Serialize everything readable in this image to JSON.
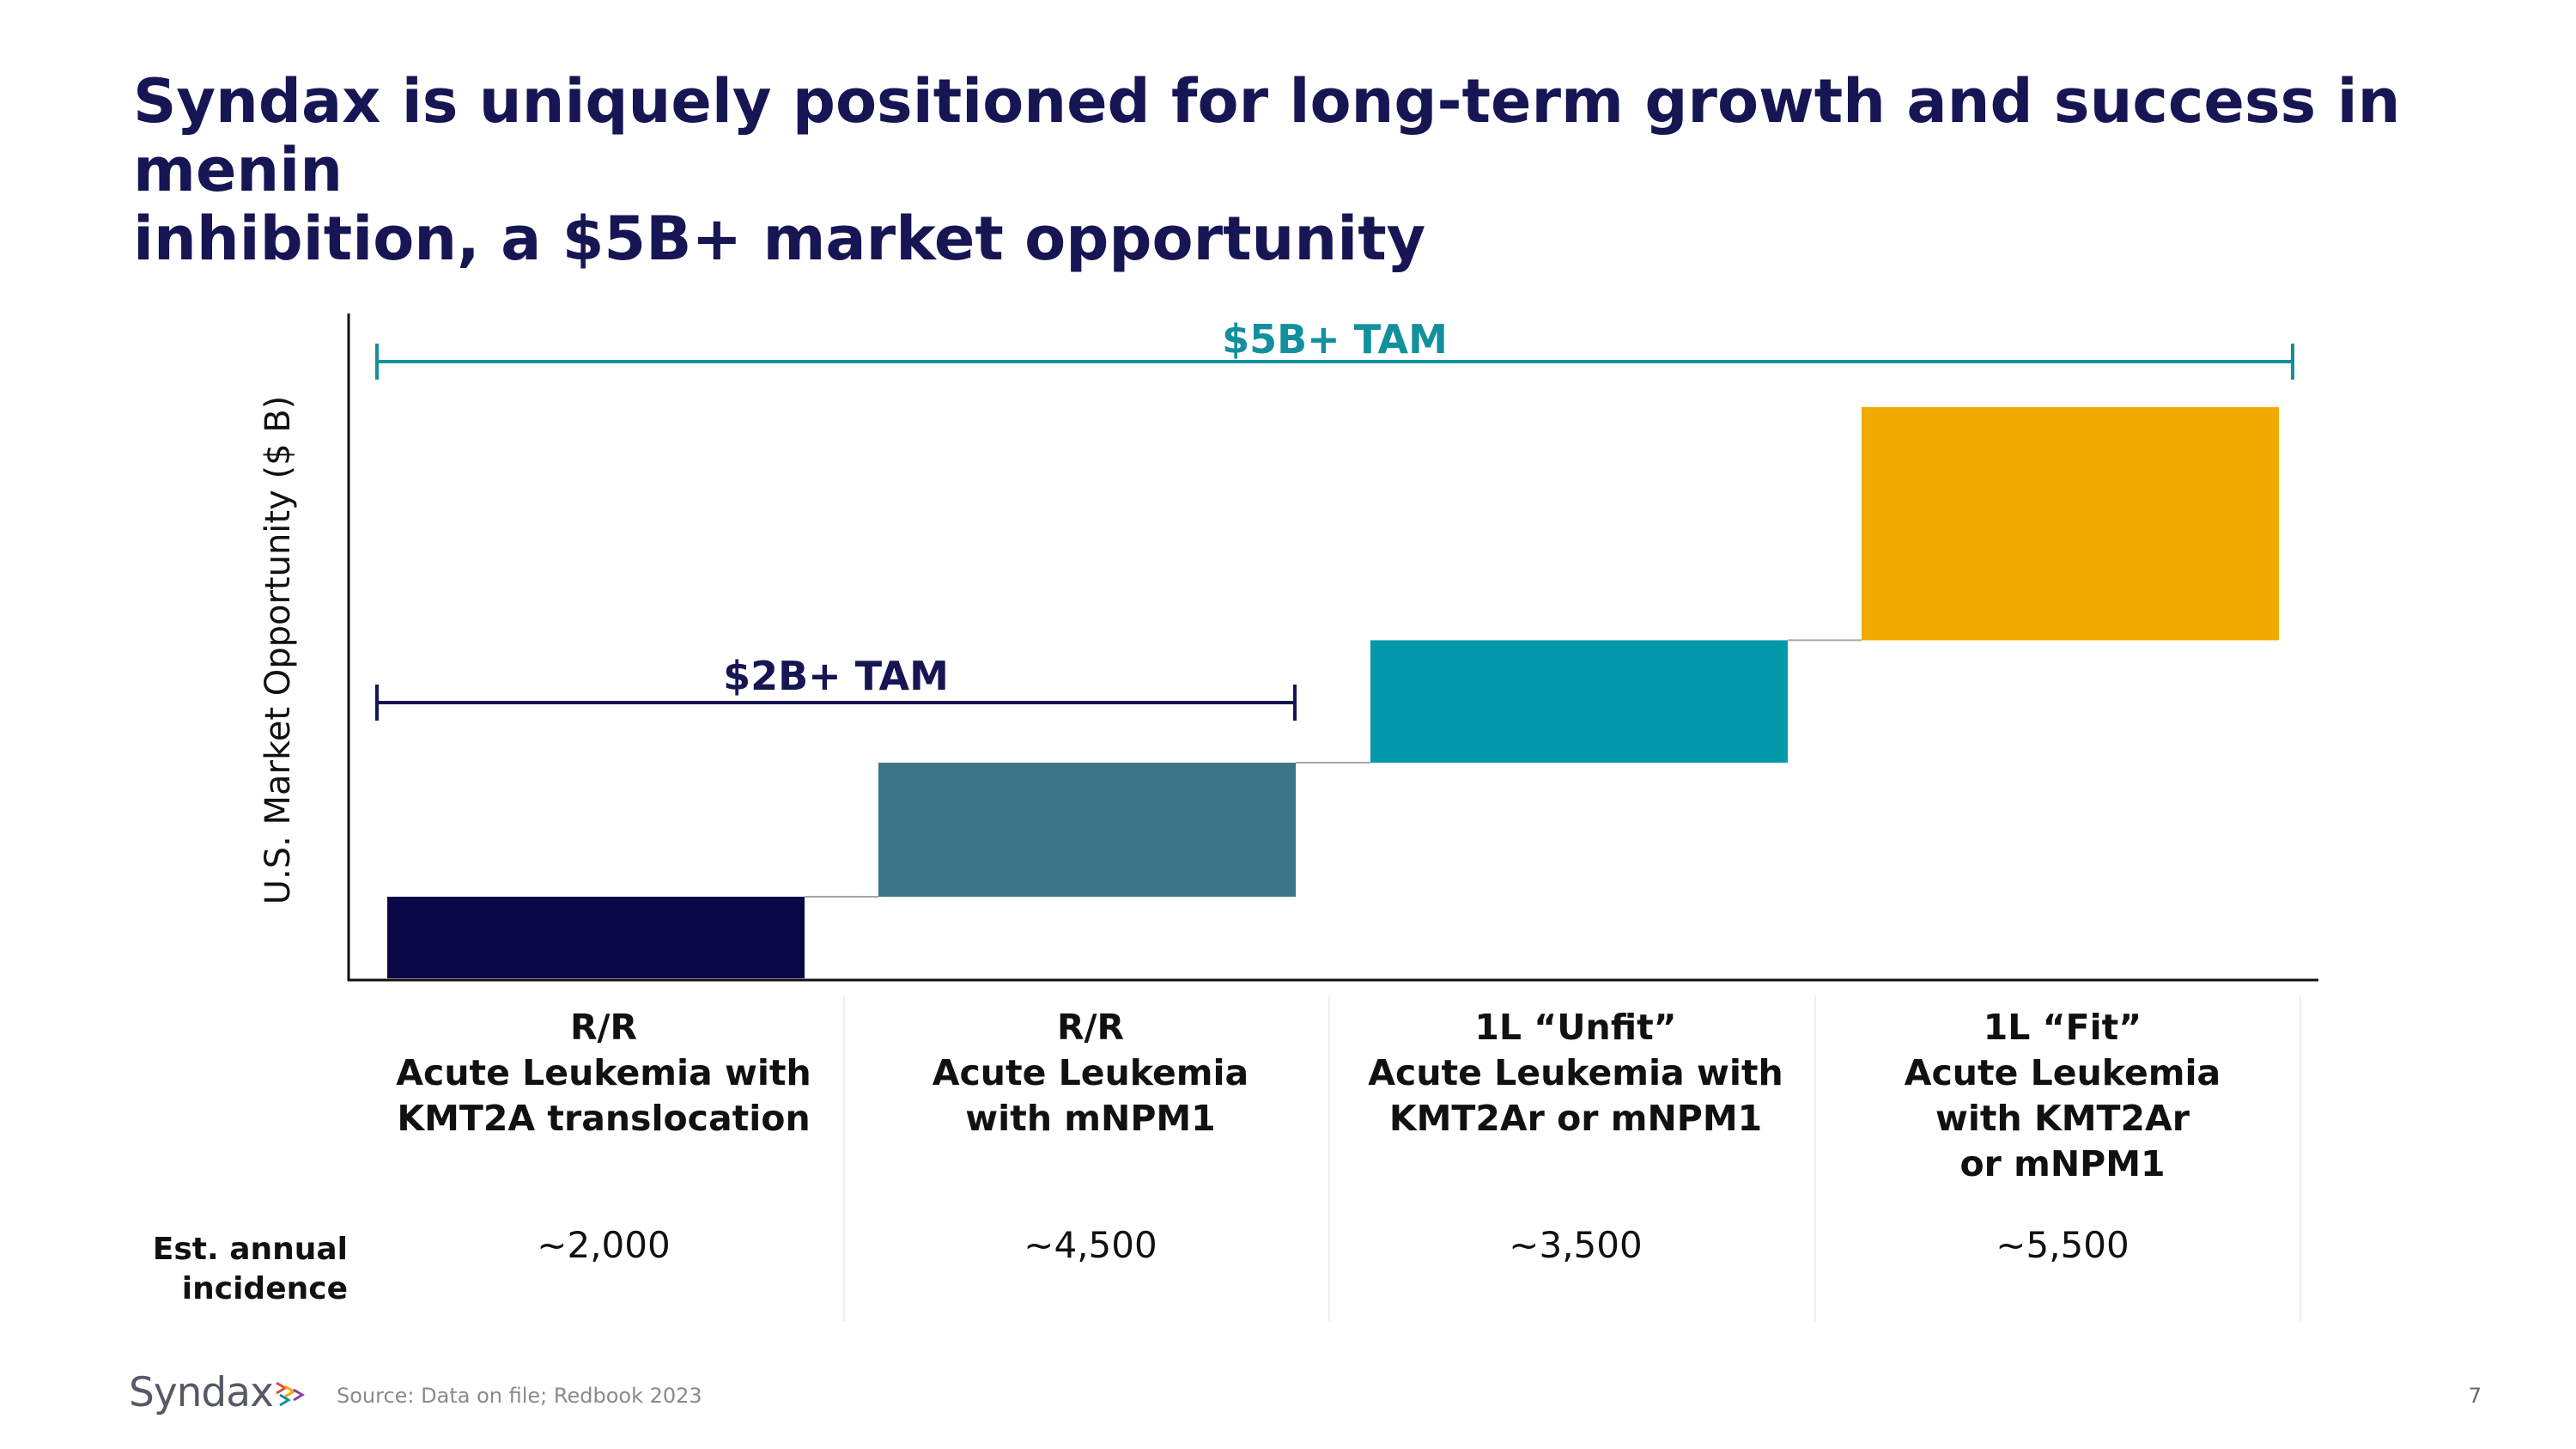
{
  "title": {
    "line1": "Syndax is uniquely positioned for long-term growth and success in menin",
    "line2": "inhibition, a $5B+ market opportunity"
  },
  "colors": {
    "title": "#161654",
    "tam_total": "#13909E",
    "tam_rr": "#161654",
    "bar_rr_kmt2a": "#0B0645",
    "bar_rr_npm1": "#3D7588",
    "bar_1l_unfit": "#0399AA",
    "bar_1l_fit": "#F0AA00"
  },
  "chart_data": {
    "type": "bar",
    "subtype": "waterfall",
    "title": "",
    "ylabel": "U.S. Market Opportunity ($ B)",
    "xlabel": "",
    "y_tick_labels": "none",
    "categories": [
      "R/R Acute Leukemia with KMT2A translocation",
      "R/R Acute Leukemia with mNPM1",
      "1L “Unfit” Acute Leukemia with KMT2Ar or mNPM1",
      "1L “Fit” Acute Leukemia with KMT2Ar or mNPM1"
    ],
    "values": [
      0.7,
      1.15,
      1.05,
      2.0
    ],
    "cumulative_end": [
      0.7,
      1.85,
      2.9,
      4.9
    ],
    "ylim": [
      0,
      5.6
    ],
    "values_note": "approximate, estimated from bar heights; axis has no numeric ticks",
    "annotations": [
      {
        "label": "$5B+ TAM",
        "spans_categories": [
          0,
          3
        ],
        "color": "#13909E"
      },
      {
        "label": "$2B+ TAM",
        "spans_categories": [
          0,
          1
        ],
        "color": "#161654"
      }
    ]
  },
  "categories": [
    {
      "line1": "R/R",
      "line2": "Acute Leukemia with",
      "line3": "KMT2A translocation",
      "line4": "",
      "incidence": "~2,000"
    },
    {
      "line1": "R/R",
      "line2": "Acute Leukemia",
      "line3": "with mNPM1",
      "line4": "",
      "incidence": "~4,500"
    },
    {
      "line1": "1L “Unfit”",
      "line2": "Acute Leukemia with",
      "line3": "KMT2Ar or mNPM1",
      "line4": "",
      "incidence": "~3,500"
    },
    {
      "line1": "1L “Fit”",
      "line2": "Acute Leukemia",
      "line3": "with KMT2Ar",
      "line4": "or mNPM1",
      "incidence": "~5,500"
    }
  ],
  "incidence_label": {
    "line1": "Est. annual",
    "line2": "incidence"
  },
  "footer": {
    "logo_text": "Syndax",
    "logo_icon": "syndax-logo-icon",
    "source": "Source: Data on file; Redbook 2023",
    "page_number": "7"
  }
}
